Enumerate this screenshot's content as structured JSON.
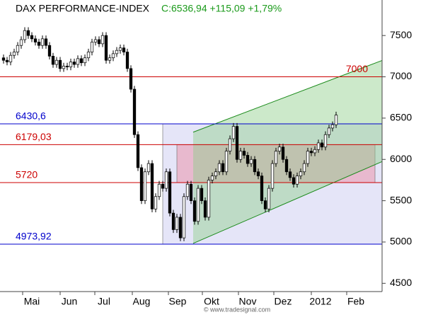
{
  "chart_data": {
    "type": "candlestick",
    "title": "DAX PERFORMANCE-INDEX",
    "subtitle": "C:6536,94 +115,09 +1,79%",
    "watermark": "© www.tradesignal.com",
    "x": [
      0,
      1,
      2,
      3,
      4,
      5,
      6,
      7,
      8,
      9,
      10,
      11,
      12,
      13,
      14,
      15,
      16,
      17,
      18,
      19,
      20,
      21,
      22,
      23,
      24,
      25,
      26,
      27,
      28,
      29,
      30,
      31,
      32,
      33,
      34,
      35,
      36,
      37,
      38,
      39,
      40,
      41,
      42,
      43,
      44,
      45,
      46,
      47,
      48,
      49,
      50,
      51,
      52,
      53,
      54,
      55,
      56,
      57,
      58,
      59,
      60,
      61,
      62,
      63,
      64,
      65,
      66,
      67,
      68,
      69,
      70,
      71,
      72,
      73,
      74,
      75,
      76,
      77,
      78,
      79,
      80,
      81,
      82,
      83,
      84,
      85,
      86,
      87,
      88,
      89,
      90,
      91,
      92,
      93,
      94
    ],
    "open": [
      7230,
      7200,
      7180,
      7260,
      7300,
      7380,
      7450,
      7560,
      7500,
      7460,
      7420,
      7380,
      7460,
      7380,
      7250,
      7150,
      7200,
      7100,
      7130,
      7120,
      7180,
      7150,
      7220,
      7170,
      7230,
      7300,
      7420,
      7450,
      7400,
      7500,
      7200,
      7230,
      7280,
      7320,
      7350,
      7300,
      7100,
      6850,
      6300,
      5900,
      5500,
      5850,
      5950,
      5400,
      5550,
      5700,
      5650,
      5850,
      5350,
      5150,
      5300,
      5050,
      5550,
      5700,
      5500,
      5250,
      5650,
      5500,
      5300,
      5750,
      5800,
      5850,
      5950,
      5850,
      6100,
      6250,
      6400,
      6000,
      6100,
      6050,
      5950,
      6000,
      5850,
      5800,
      5500,
      5400,
      5650,
      5950,
      6100,
      6150,
      6000,
      5850,
      5780,
      5700,
      5800,
      5850,
      5950,
      6100,
      6080,
      6120,
      6200,
      6150,
      6300,
      6380,
      6420
    ],
    "high": [
      7270,
      7240,
      7300,
      7340,
      7420,
      7490,
      7600,
      7600,
      7540,
      7500,
      7460,
      7500,
      7500,
      7420,
      7290,
      7240,
      7240,
      7170,
      7170,
      7220,
      7220,
      7260,
      7260,
      7270,
      7340,
      7460,
      7490,
      7490,
      7540,
      7540,
      7270,
      7320,
      7360,
      7390,
      7390,
      7340,
      7140,
      6890,
      6340,
      5940,
      5890,
      5990,
      5990,
      5590,
      5740,
      5740,
      5890,
      5890,
      5390,
      5340,
      5340,
      5590,
      5740,
      5740,
      5540,
      5690,
      5690,
      5540,
      5790,
      5840,
      5890,
      5990,
      5990,
      6140,
      6290,
      6440,
      6440,
      6140,
      6140,
      6090,
      6040,
      6040,
      5890,
      5840,
      5540,
      5690,
      5990,
      6140,
      6190,
      6190,
      6040,
      5890,
      5820,
      5840,
      5890,
      5990,
      6140,
      6140,
      6160,
      6240,
      6240,
      6340,
      6420,
      6460,
      6577
    ],
    "low": [
      7160,
      7140,
      7140,
      7220,
      7260,
      7340,
      7410,
      7460,
      7420,
      7380,
      7340,
      7340,
      7340,
      7210,
      7110,
      7110,
      7060,
      7060,
      7080,
      7080,
      7110,
      7110,
      7130,
      7130,
      7190,
      7260,
      7380,
      7360,
      7360,
      7160,
      7160,
      7190,
      7240,
      7280,
      7260,
      7060,
      6810,
      6260,
      5860,
      5460,
      5460,
      5810,
      5360,
      5360,
      5510,
      5610,
      5610,
      5310,
      5110,
      5110,
      5010,
      5010,
      5510,
      5460,
      5210,
      5210,
      5460,
      5260,
      5260,
      5710,
      5760,
      5810,
      5810,
      5810,
      6060,
      6210,
      5960,
      5960,
      6010,
      5910,
      5910,
      5810,
      5760,
      5460,
      5360,
      5360,
      5610,
      5910,
      6060,
      5960,
      5810,
      5740,
      5660,
      5660,
      5760,
      5810,
      5910,
      6040,
      6040,
      6080,
      6110,
      6110,
      6260,
      6340,
      6380
    ],
    "close": [
      7200,
      7180,
      7260,
      7300,
      7380,
      7450,
      7560,
      7500,
      7460,
      7420,
      7380,
      7460,
      7380,
      7250,
      7150,
      7200,
      7100,
      7130,
      7120,
      7180,
      7150,
      7220,
      7170,
      7230,
      7300,
      7420,
      7450,
      7400,
      7500,
      7200,
      7230,
      7280,
      7320,
      7350,
      7300,
      7100,
      6850,
      6300,
      5900,
      5500,
      5850,
      5950,
      5400,
      5550,
      5700,
      5650,
      5850,
      5350,
      5150,
      5300,
      5050,
      5550,
      5700,
      5500,
      5250,
      5650,
      5500,
      5300,
      5750,
      5800,
      5850,
      5950,
      5850,
      6100,
      6250,
      6400,
      6000,
      6100,
      6050,
      5950,
      6000,
      5850,
      5800,
      5500,
      5400,
      5650,
      5950,
      6100,
      6150,
      6000,
      5850,
      5780,
      5700,
      5800,
      5850,
      5950,
      6100,
      6080,
      6120,
      6200,
      6150,
      6300,
      6380,
      6420,
      6537
    ],
    "xlim": [
      -1,
      107
    ],
    "xticks": [
      {
        "value": 8,
        "label": "Mai"
      },
      {
        "value": 18.6,
        "label": "Jun"
      },
      {
        "value": 28.4,
        "label": "Jul"
      },
      {
        "value": 39,
        "label": "Aug"
      },
      {
        "value": 49.2,
        "label": "Sep"
      },
      {
        "value": 58.8,
        "label": "Okt"
      },
      {
        "value": 69,
        "label": "Nov"
      },
      {
        "value": 79,
        "label": "Dez"
      },
      {
        "value": 89.6,
        "label": "2012"
      },
      {
        "value": 99.6,
        "label": "Feb"
      }
    ],
    "ylim": [
      4400,
      7930
    ],
    "yticks": [
      4500,
      5000,
      5500,
      6000,
      6500,
      7000,
      7500
    ],
    "zones": [
      {
        "x": [
          45,
          107
        ],
        "y": [
          4973.92,
          6430.6
        ],
        "color": "#dcdcf6"
      },
      {
        "x": [
          49,
          105
        ],
        "y": [
          5720,
          6179.03
        ],
        "color": "#e8aac0"
      }
    ],
    "channel": {
      "x": [
        53.6,
        107
      ],
      "upper": [
        6330,
        7198
      ],
      "lower": [
        4983,
        5974
      ],
      "color": "#8fcf8a"
    },
    "levels": [
      {
        "value": 7000,
        "label": "7000",
        "color": "#cc0000",
        "side": "right"
      },
      {
        "value": 6430.6,
        "label": "6430,6",
        "color": "#0000cc",
        "side": "left"
      },
      {
        "value": 6179.03,
        "label": "6179,03",
        "color": "#cc0000",
        "side": "left"
      },
      {
        "value": 5720,
        "label": "5720",
        "color": "#cc0000",
        "side": "left"
      },
      {
        "value": 4973.92,
        "label": "4973,92",
        "color": "#0000cc",
        "side": "left"
      }
    ]
  }
}
